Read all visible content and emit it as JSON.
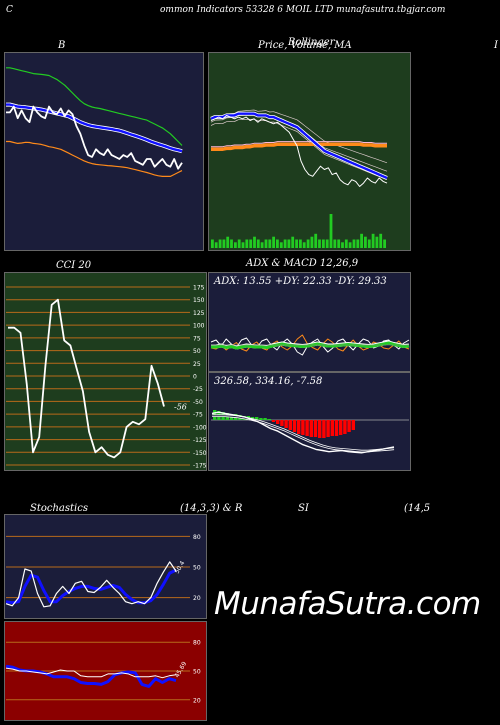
{
  "header": {
    "left": "C",
    "center": "ommon  Indicators 53328              6  MOIL  LTD munafasutra.tbgjar.com"
  },
  "panels": {
    "b_title": "B",
    "price_title": "Price,  Volume,  MA",
    "price_title_overlay": "Bollinger",
    "right_edge_label": "I",
    "cci_title": "CCI 20",
    "adx_title": "ADX  & MACD 12,26,9",
    "stoch_title": "Stochastics",
    "stoch_params": "(14,3,3) & R",
    "rsi_title": "SI",
    "rsi_params": "(14,5"
  },
  "watermark": "MunafaSutra.com",
  "colors": {
    "dark_panel": "#1b1d3a",
    "green_panel": "#1e3d1e",
    "red_panel": "#8b0000",
    "grid": "#b86a1a",
    "blue": "#1010ff",
    "green": "#22cc22",
    "orange": "#ff8a1a",
    "white": "#ffffff",
    "red": "#ff0000"
  },
  "chart_data": [
    {
      "name": "bollinger",
      "type": "line",
      "x": [
        0,
        1,
        2,
        3,
        4,
        5,
        6,
        7,
        8,
        9,
        10,
        11,
        12,
        13,
        14,
        15,
        16,
        17,
        18,
        19,
        20,
        21,
        22,
        23,
        24,
        25,
        26,
        27,
        28,
        29,
        30,
        31,
        32,
        33,
        34,
        35,
        36,
        37,
        38,
        39,
        40,
        41,
        42,
        43,
        44,
        45
      ],
      "series": [
        {
          "name": "upper",
          "color": "#22cc22",
          "values": [
            388,
            388,
            387.5,
            387,
            386.5,
            386,
            385.5,
            385,
            384.8,
            384.6,
            384.3,
            384,
            383,
            382,
            380.5,
            379,
            377,
            375,
            373,
            371,
            369.5,
            368.5,
            367.8,
            367.3,
            367,
            366.5,
            366,
            365.5,
            365,
            364.5,
            364,
            363.5,
            363,
            362.5,
            362,
            361.5,
            361,
            360,
            359,
            358,
            357,
            355.5,
            354,
            352,
            350,
            348
          ]
        },
        {
          "name": "middle",
          "color": "#1010ff",
          "values": [
            369,
            369,
            368.5,
            368,
            367.8,
            367.6,
            367.3,
            367,
            366.8,
            366.5,
            366,
            365.5,
            365,
            364.5,
            364,
            363.5,
            363,
            362,
            361,
            360,
            359.2,
            358.5,
            358,
            357.6,
            357.3,
            357,
            356.7,
            356.4,
            356,
            355.6,
            355,
            354.3,
            353.6,
            353,
            352.3,
            351.6,
            350.8,
            350,
            349.3,
            348.6,
            348,
            347.3,
            346.6,
            346,
            345.5,
            345
          ]
        },
        {
          "name": "lower",
          "color": "#ff8a1a",
          "values": [
            350,
            350,
            349.5,
            349,
            349.2,
            349.6,
            349.5,
            349,
            348.8,
            348.5,
            348,
            347.3,
            347,
            346.5,
            346,
            345,
            344,
            343,
            342,
            341,
            340,
            339.2,
            338.6,
            338.2,
            338,
            337.8,
            337.6,
            337.4,
            337.2,
            337,
            336.8,
            336.5,
            336,
            335.5,
            335,
            334.5,
            334,
            333.4,
            332.8,
            332.3,
            332,
            332,
            332,
            333,
            334,
            335
          ]
        },
        {
          "name": "price",
          "color": "#ffffff",
          "values": [
            365,
            365,
            368,
            362,
            366,
            362,
            360,
            368,
            365,
            363,
            362,
            368,
            365,
            364,
            367,
            363,
            366,
            364,
            358,
            354,
            348,
            343,
            342,
            346,
            344,
            343,
            346,
            343,
            342,
            341,
            343,
            342,
            344,
            340,
            339,
            338,
            341,
            341,
            337,
            339,
            341,
            338,
            337,
            341,
            336,
            339
          ]
        }
      ]
    },
    {
      "name": "price_volume_ma",
      "type": "line",
      "x": [
        0,
        1,
        2,
        3,
        4,
        5,
        6,
        7,
        8,
        9,
        10,
        11,
        12,
        13,
        14,
        15,
        16,
        17,
        18,
        19,
        20,
        21,
        22,
        23,
        24,
        25,
        26,
        27,
        28,
        29,
        30,
        31,
        32,
        33,
        34,
        35,
        36,
        37,
        38,
        39,
        40,
        41,
        42,
        43,
        44,
        45
      ],
      "series": [
        {
          "name": "price",
          "color": "#ffffff",
          "values": [
            367,
            368,
            369,
            368,
            370,
            369,
            368,
            369,
            368,
            369,
            367,
            368,
            366,
            368,
            367,
            366,
            365,
            366,
            364,
            362,
            360,
            356,
            352,
            343,
            338,
            335,
            334,
            337,
            340,
            338,
            339,
            335,
            336,
            332,
            330,
            329,
            332,
            331,
            328,
            330,
            333,
            331,
            330,
            333,
            331,
            330
          ]
        },
        {
          "name": "ma_blue",
          "color": "#1010ff",
          "values": [
            368,
            369,
            369,
            369,
            370,
            370,
            370,
            371,
            371,
            371,
            371,
            371,
            370,
            370,
            370,
            369,
            369,
            368,
            367,
            366,
            365,
            364,
            363,
            361,
            359,
            357,
            355,
            353,
            351,
            349,
            348,
            347,
            346,
            345,
            344,
            343,
            342,
            341,
            340,
            339,
            338,
            337,
            336,
            335,
            334,
            333
          ]
        },
        {
          "name": "ma_orange",
          "color": "#ff8a1a",
          "values": [
            350,
            350,
            350,
            350,
            350.5,
            350.5,
            351,
            351,
            351,
            351.5,
            351.5,
            352,
            352,
            352,
            352.5,
            352.5,
            352.5,
            353,
            353,
            353,
            353,
            353,
            353,
            353,
            353,
            353,
            353,
            353,
            353,
            353,
            353,
            353,
            353,
            353,
            353,
            353,
            353,
            353,
            353,
            352.5,
            352.5,
            352.5,
            352,
            352,
            352,
            352
          ]
        }
      ],
      "volume": [
        3,
        2,
        3,
        3,
        4,
        3,
        2,
        3,
        2,
        3,
        3,
        4,
        3,
        2,
        3,
        3,
        4,
        3,
        2,
        3,
        3,
        4,
        3,
        3,
        2,
        3,
        4,
        5,
        3,
        3,
        3,
        12,
        3,
        3,
        2,
        3,
        2,
        3,
        3,
        5,
        4,
        3,
        5,
        4,
        5,
        3
      ]
    },
    {
      "name": "cci",
      "type": "line",
      "ylim": [
        -175,
        175
      ],
      "ticks": [
        175,
        150,
        125,
        100,
        75,
        50,
        25,
        0,
        -25,
        -50,
        -75,
        -100,
        -125,
        -150,
        -175
      ],
      "values": [
        95,
        95,
        85,
        -15,
        -150,
        -120,
        20,
        140,
        150,
        70,
        60,
        15,
        -30,
        -110,
        -150,
        -140,
        -155,
        -160,
        -150,
        -100,
        -90,
        -95,
        -85,
        20,
        -15,
        -60
      ],
      "last_label": "-56"
    },
    {
      "name": "adx",
      "type": "line",
      "text": "ADX: 13.55  +DY: 22.33 -DY: 29.33",
      "values": [
        13.55,
        22.33,
        29.33
      ]
    },
    {
      "name": "macd",
      "type": "bar",
      "text": "326.58,  334.16,  -7.58",
      "values": [
        326.58,
        334.16,
        -7.58
      ]
    },
    {
      "name": "stochastics",
      "type": "line",
      "ylim": [
        0,
        100
      ],
      "ticks": [
        80,
        50,
        20
      ],
      "series": [
        {
          "name": "k",
          "color": "#ffffff",
          "values": [
            14,
            12,
            20,
            48,
            46,
            24,
            11,
            12,
            24,
            31,
            24,
            34,
            36,
            26,
            25,
            30,
            37,
            30,
            24,
            16,
            14,
            16,
            14,
            20,
            34,
            45,
            55,
            46
          ]
        },
        {
          "name": "d",
          "color": "#1010ff",
          "values": [
            16,
            15,
            16,
            31,
            42,
            40,
            27,
            16,
            16,
            22,
            26,
            29,
            31,
            31,
            29,
            28,
            30,
            32,
            30,
            23,
            18,
            15,
            15,
            17,
            23,
            33,
            44,
            47
          ]
        }
      ],
      "last_label": "50.4"
    },
    {
      "name": "rsi",
      "type": "line",
      "ylim": [
        0,
        100
      ],
      "ticks": [
        80,
        50,
        20
      ],
      "series": [
        {
          "name": "rsi",
          "color": "#ffffff",
          "values": [
            53,
            52,
            50,
            50,
            49,
            48,
            47,
            49,
            51,
            50,
            50,
            45,
            44,
            44,
            44,
            47,
            47,
            48,
            47,
            44,
            44,
            44,
            45,
            43,
            45,
            46
          ]
        },
        {
          "name": "mfi",
          "color": "#1010ff",
          "values": [
            55,
            54,
            51,
            50,
            50,
            49,
            47,
            44,
            44,
            44,
            42,
            38,
            37,
            37,
            36,
            39,
            46,
            48,
            49,
            48,
            36,
            34,
            42,
            38,
            42,
            40
          ]
        }
      ],
      "last_label": "45.69"
    }
  ]
}
